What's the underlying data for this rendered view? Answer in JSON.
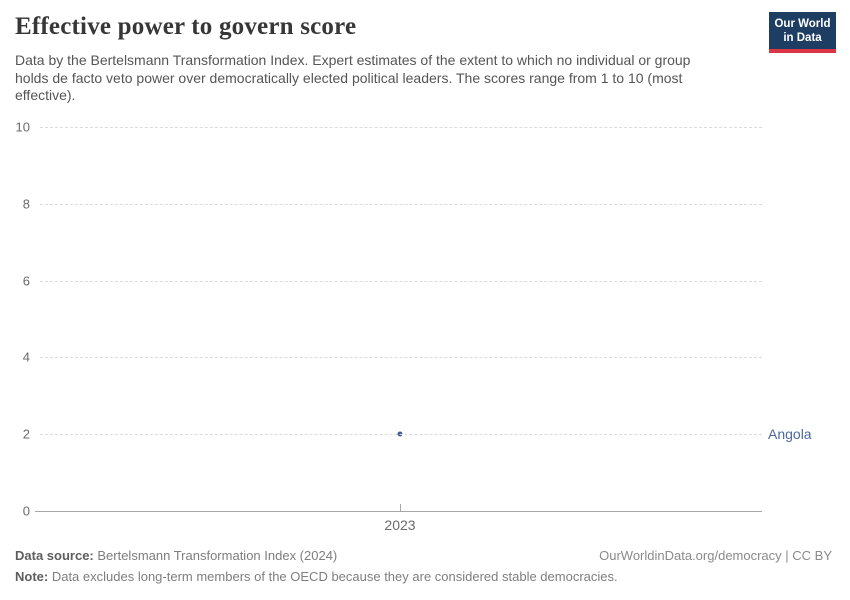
{
  "header": {
    "title": "Effective power to govern score",
    "subtitle_lines": [
      "Data by the Bertelsmann Transformation Index. Expert estimates of the extent to which no individual or group",
      "holds de facto veto power over democratically elected political leaders. The scores range from 1 to 10 (most",
      "effective)."
    ],
    "logo": {
      "line1": "Our World",
      "line2": "in Data",
      "bg_color": "#1d3d63",
      "accent_color": "#dc3545"
    }
  },
  "chart_data": {
    "type": "scatter",
    "title": "Effective power to govern score",
    "xlabel": "",
    "ylabel": "",
    "ylim": [
      0,
      10
    ],
    "yticks": [
      0,
      2,
      4,
      6,
      8,
      10
    ],
    "xticks": [
      "2023"
    ],
    "grid": "horizontal dashed",
    "legend_position": "right-of-point",
    "series": [
      {
        "name": "Angola",
        "x": [
          2023
        ],
        "values": [
          2
        ],
        "color": "#3d5c97",
        "label_color": "#4c6a9c"
      }
    ]
  },
  "footer": {
    "source_label": "Data source:",
    "source_text": " Bertelsmann Transformation Index (2024)",
    "rights": "OurWorldinData.org/democracy | CC BY",
    "note_label": "Note:",
    "note_text": " Data excludes long-term members of the OECD because they are considered stable democracies."
  }
}
